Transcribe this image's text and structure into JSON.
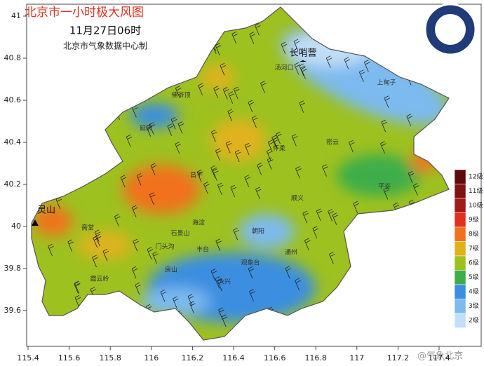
{
  "header": {
    "title": "北京市一小时极大风图",
    "time": "11月27日06时",
    "credit": "北京市气象数据中心制"
  },
  "axes": {
    "x_ticks": [
      115.4,
      115.6,
      115.8,
      116,
      116.2,
      116.4,
      116.6,
      116.8,
      117,
      117.2,
      117.4
    ],
    "y_ticks": [
      39.6,
      39.8,
      40,
      40.2,
      40.4,
      40.6,
      40.8,
      41
    ]
  },
  "legend": [
    {
      "label": "12级",
      "color": "#5e0b0b"
    },
    {
      "label": "11级",
      "color": "#7d1414"
    },
    {
      "label": "10级",
      "color": "#a11b1b"
    },
    {
      "label": "9级",
      "color": "#e2301f"
    },
    {
      "label": "8级",
      "color": "#f2711e"
    },
    {
      "label": "7级",
      "color": "#e0b21a"
    },
    {
      "label": "6级",
      "color": "#9dc11f"
    },
    {
      "label": "5级",
      "color": "#3ead4a"
    },
    {
      "label": "4级",
      "color": "#3b8ee0"
    },
    {
      "label": "3级",
      "color": "#7cbaef"
    },
    {
      "label": "2级",
      "color": "#c3def7"
    }
  ],
  "places": [
    {
      "label": "长哨营"
    },
    {
      "label": "灵山"
    },
    {
      "label": "延庆"
    },
    {
      "label": "佛爷顶"
    },
    {
      "label": "汤河口"
    },
    {
      "label": "上甸子"
    },
    {
      "label": "怀柔"
    },
    {
      "label": "密云"
    },
    {
      "label": "平谷"
    },
    {
      "label": "顺义"
    },
    {
      "label": "昌平"
    },
    {
      "label": "斋堂"
    },
    {
      "label": "门头沟"
    },
    {
      "label": "石景山"
    },
    {
      "label": "海淀"
    },
    {
      "label": "朝阳"
    },
    {
      "label": "丰台"
    },
    {
      "label": "房山"
    },
    {
      "label": "观象台"
    },
    {
      "label": "通州"
    },
    {
      "label": "大兴"
    },
    {
      "label": "霞云岭"
    }
  ],
  "watermark": "@气象北京"
}
